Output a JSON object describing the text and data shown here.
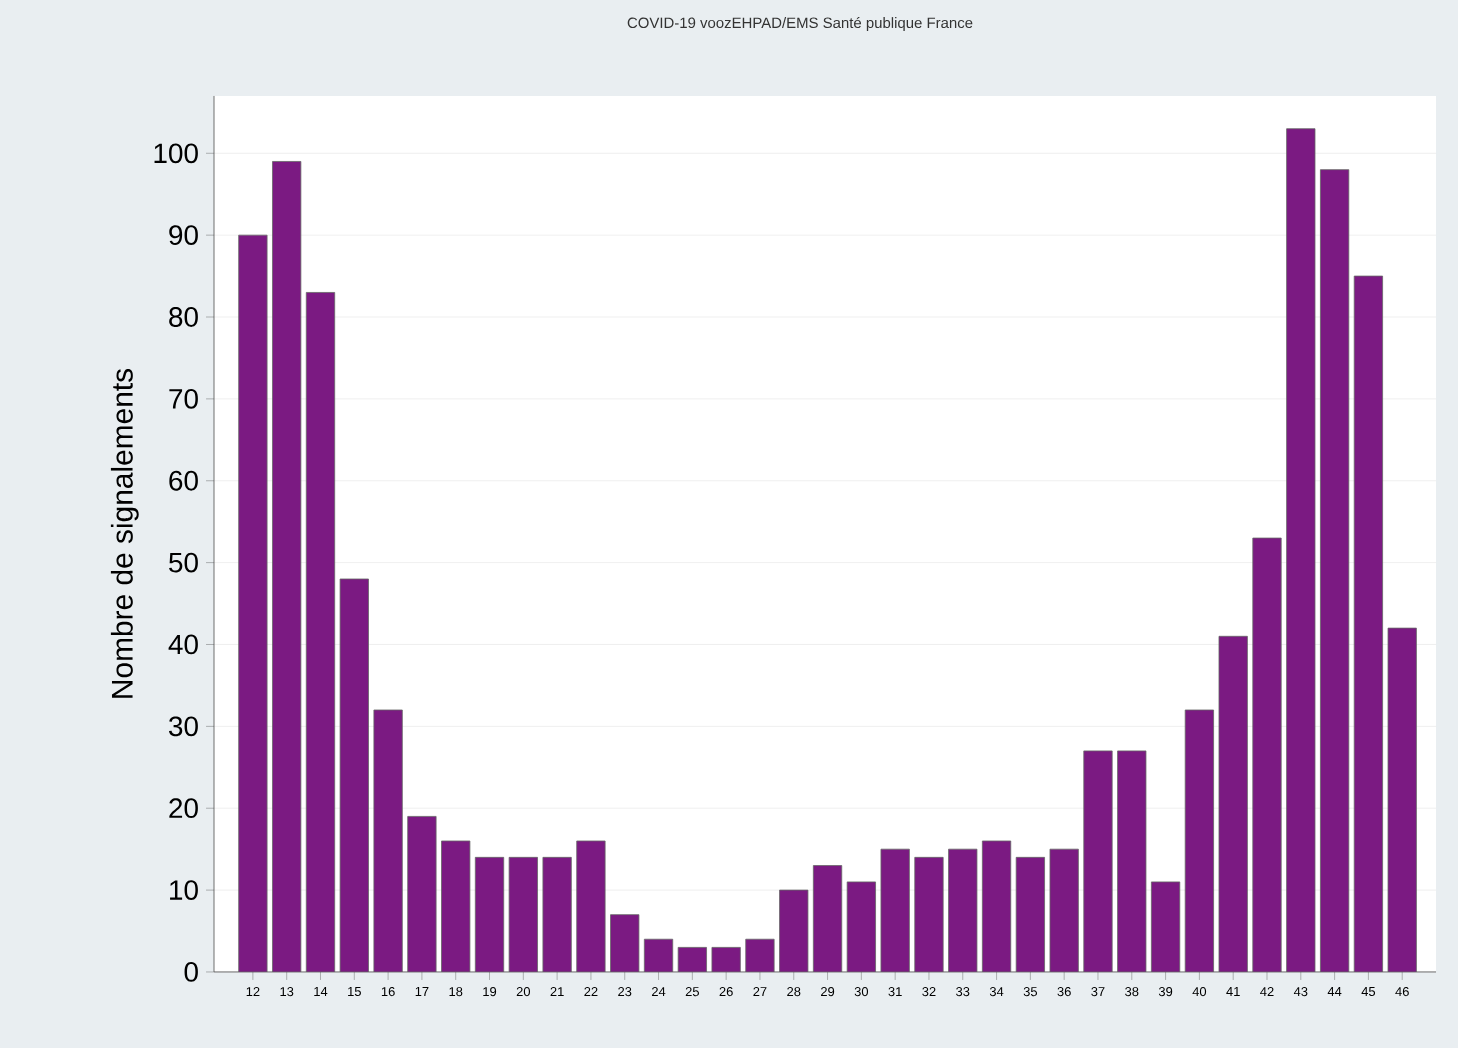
{
  "chart_data": {
    "type": "bar",
    "title": "COVID-19 voozEHPAD/EMS Santé publique France",
    "ylabel": "Nombre de signalements",
    "categories": [
      "12",
      "13",
      "14",
      "15",
      "16",
      "17",
      "18",
      "19",
      "20",
      "21",
      "22",
      "23",
      "24",
      "25",
      "26",
      "27",
      "28",
      "29",
      "30",
      "31",
      "32",
      "33",
      "34",
      "35",
      "36",
      "37",
      "38",
      "39",
      "40",
      "41",
      "42",
      "43",
      "44",
      "45",
      "46"
    ],
    "values": [
      90,
      99,
      83,
      48,
      32,
      19,
      16,
      14,
      14,
      14,
      16,
      7,
      4,
      3,
      3,
      4,
      10,
      13,
      11,
      15,
      14,
      15,
      16,
      14,
      15,
      27,
      27,
      11,
      32,
      41,
      53,
      103,
      98,
      85,
      42
    ],
    "color": "#7b1a82",
    "ylim": [
      0,
      107
    ],
    "yticks": [
      0,
      10,
      20,
      30,
      40,
      50,
      60,
      70,
      80,
      90,
      100
    ],
    "grid": "y"
  }
}
